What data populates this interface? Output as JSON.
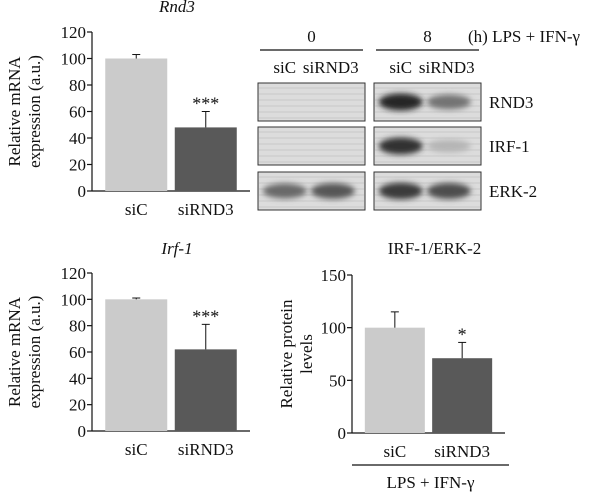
{
  "chart_data": [
    {
      "id": "rnd3",
      "type": "bar",
      "title": "Rnd3",
      "ylabel": [
        "Relative mRNA",
        "expression (a.u.)"
      ],
      "categories": [
        "siC",
        "siRND3"
      ],
      "values": [
        100,
        48
      ],
      "errors": [
        3,
        12
      ],
      "significance": [
        "",
        "***"
      ],
      "ylim": [
        0,
        120
      ],
      "yticks": [
        0,
        20,
        40,
        60,
        80,
        100,
        120
      ],
      "colors": [
        "#cbcbcb",
        "#595959"
      ]
    },
    {
      "id": "irf1",
      "type": "bar",
      "title": "Irf-1",
      "ylabel": [
        "Relative mRNA",
        "expression (a.u.)"
      ],
      "categories": [
        "siC",
        "siRND3"
      ],
      "values": [
        100,
        62
      ],
      "errors": [
        1,
        19
      ],
      "significance": [
        "",
        "***"
      ],
      "ylim": [
        0,
        120
      ],
      "yticks": [
        0,
        20,
        40,
        60,
        80,
        100,
        120
      ],
      "colors": [
        "#cbcbcb",
        "#595959"
      ]
    },
    {
      "id": "protein",
      "type": "bar",
      "title": "IRF-1/ERK-2",
      "ylabel": [
        "Relative protein",
        "levels"
      ],
      "categories": [
        "siC",
        "siRND3"
      ],
      "values": [
        100,
        71
      ],
      "errors": [
        15,
        15
      ],
      "significance": [
        "",
        "*"
      ],
      "ylim": [
        0,
        150
      ],
      "yticks": [
        0,
        50,
        100,
        150
      ],
      "colors": [
        "#cbcbcb",
        "#595959"
      ],
      "footer": "LPS + IFN-γ"
    }
  ],
  "blot": {
    "timepoints": [
      "0",
      "8"
    ],
    "time_unit": "(h) LPS + IFN-γ",
    "lanes": [
      "siC",
      "siRND3"
    ],
    "rows": [
      {
        "label": "RND3",
        "intensity": [
          [
            0.0,
            0.0
          ],
          [
            0.85,
            0.45
          ]
        ]
      },
      {
        "label": "IRF-1",
        "intensity": [
          [
            0.0,
            0.0
          ],
          [
            0.8,
            0.1
          ]
        ]
      },
      {
        "label": "ERK-2",
        "intensity": [
          [
            0.5,
            0.6
          ],
          [
            0.75,
            0.65
          ]
        ]
      }
    ]
  }
}
